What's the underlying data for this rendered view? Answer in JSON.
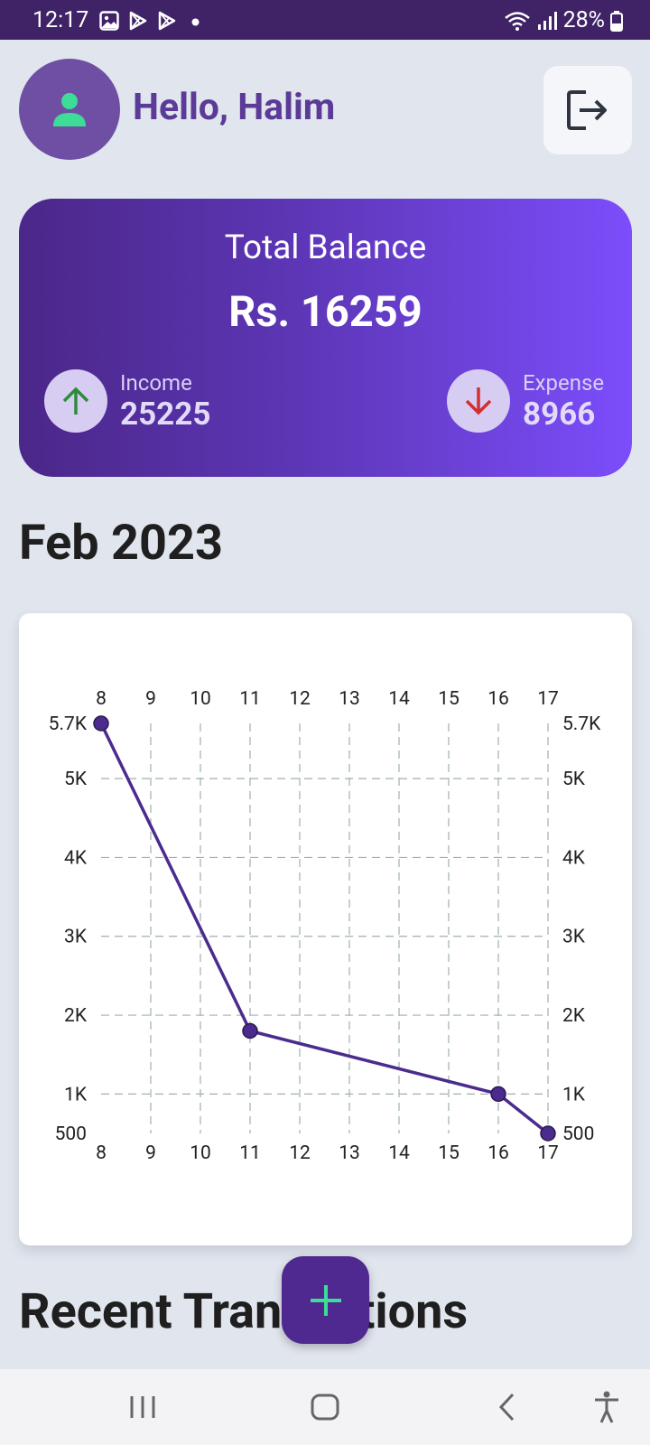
{
  "status_bar": {
    "time": "12:17",
    "battery": "28%",
    "icons": [
      "gallery-icon",
      "play-store-icon",
      "play-store-icon",
      "notification-dot-icon",
      "wifi-icon",
      "signal-icon",
      "battery-icon"
    ]
  },
  "header": {
    "greeting": "Hello, Halim",
    "avatar_icon": "person-icon",
    "logout_icon": "logout-icon"
  },
  "balance_card": {
    "title": "Total Balance",
    "amount": "Rs. 16259",
    "income_label": "Income",
    "income_value": "25225",
    "expense_label": "Expense",
    "expense_value": "8966"
  },
  "month_title": "Feb 2023",
  "section_title": "Recent Transactions",
  "fab_icon": "plus-icon",
  "colors": {
    "status_bar": "#3f2366",
    "primary": "#5b3b97",
    "line": "#4b2b8e",
    "accent_green": "#3ddc97",
    "income_arrow": "#2e8b3e",
    "expense_arrow": "#d32f2f",
    "background": "#e1e5ee"
  },
  "chart_data": {
    "type": "line",
    "title": "",
    "xlabel": "",
    "ylabel": "",
    "x_ticks": [
      "8",
      "9",
      "10",
      "11",
      "12",
      "13",
      "14",
      "15",
      "16",
      "17"
    ],
    "y_ticks": [
      "500",
      "1K",
      "2K",
      "3K",
      "4K",
      "5K",
      "5.7K"
    ],
    "y_tick_values": [
      500,
      1000,
      2000,
      3000,
      4000,
      5000,
      5700
    ],
    "xlim": [
      8,
      17
    ],
    "ylim": [
      500,
      5700
    ],
    "grid": true,
    "series": [
      {
        "points": [
          {
            "x": 8,
            "y": 5700
          },
          {
            "x": 11,
            "y": 1800
          },
          {
            "x": 16,
            "y": 1000
          },
          {
            "x": 17,
            "y": 500
          }
        ]
      }
    ]
  },
  "nav_bar": {
    "icons": [
      "recent-apps-icon",
      "home-icon",
      "back-icon",
      "accessibility-icon"
    ]
  }
}
